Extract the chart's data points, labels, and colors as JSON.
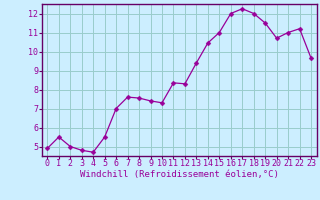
{
  "x": [
    0,
    1,
    2,
    3,
    4,
    5,
    6,
    7,
    8,
    9,
    10,
    11,
    12,
    13,
    14,
    15,
    16,
    17,
    18,
    19,
    20,
    21,
    22,
    23
  ],
  "y": [
    4.9,
    5.5,
    5.0,
    4.8,
    4.7,
    5.5,
    7.0,
    7.6,
    7.55,
    7.4,
    7.3,
    8.35,
    8.3,
    9.4,
    10.45,
    11.0,
    12.0,
    12.25,
    12.0,
    11.5,
    10.7,
    11.0,
    11.2,
    9.65
  ],
  "line_color": "#990099",
  "marker": "D",
  "marker_size": 2.5,
  "bg_color": "#cceeff",
  "grid_color": "#99cccc",
  "xlabel": "Windchill (Refroidissement éolien,°C)",
  "xlabel_color": "#990099",
  "ylim": [
    4.5,
    12.5
  ],
  "yticks": [
    5,
    6,
    7,
    8,
    9,
    10,
    11,
    12
  ],
  "xticks": [
    0,
    1,
    2,
    3,
    4,
    5,
    6,
    7,
    8,
    9,
    10,
    11,
    12,
    13,
    14,
    15,
    16,
    17,
    18,
    19,
    20,
    21,
    22,
    23
  ],
  "tick_color": "#990099",
  "spine_color": "#660066",
  "tick_fontsize": 6.0,
  "xlabel_fontsize": 6.5
}
